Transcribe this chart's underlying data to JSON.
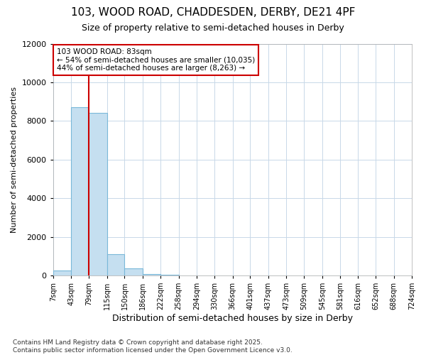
{
  "title_line1": "103, WOOD ROAD, CHADDESDEN, DERBY, DE21 4PF",
  "title_line2": "Size of property relative to semi-detached houses in Derby",
  "xlabel": "Distribution of semi-detached houses by size in Derby",
  "ylabel": "Number of semi-detached properties",
  "footer_line1": "Contains HM Land Registry data © Crown copyright and database right 2025.",
  "footer_line2": "Contains public sector information licensed under the Open Government Licence v3.0.",
  "annotation_title": "103 WOOD ROAD: 83sqm",
  "annotation_line2": "← 54% of semi-detached houses are smaller (10,035)",
  "annotation_line3": "44% of semi-detached houses are larger (8,263) →",
  "bar_edges": [
    7,
    43,
    79,
    115,
    150,
    186,
    222,
    258,
    294,
    330,
    366,
    401,
    437,
    473,
    509,
    545,
    581,
    616,
    652,
    688,
    724
  ],
  "bar_heights": [
    250,
    8700,
    8400,
    1100,
    350,
    80,
    20,
    5,
    2,
    1,
    0,
    0,
    0,
    0,
    0,
    0,
    0,
    0,
    0,
    0
  ],
  "bar_color": "#c5dff0",
  "bar_edge_color": "#7ab8d9",
  "vline_color": "#cc0000",
  "vline_x": 79,
  "ylim": [
    0,
    12000
  ],
  "yticks": [
    0,
    2000,
    4000,
    6000,
    8000,
    10000,
    12000
  ],
  "grid_color": "#c8d8e8",
  "background_color": "#ffffff",
  "plot_bg_color": "#ffffff",
  "annotation_box_facecolor": "#ffffff",
  "annotation_box_edgecolor": "#cc0000",
  "title_fontsize": 11,
  "subtitle_fontsize": 9,
  "ylabel_fontsize": 8,
  "xlabel_fontsize": 9,
  "ytick_fontsize": 8,
  "xtick_fontsize": 7,
  "footer_fontsize": 6.5
}
